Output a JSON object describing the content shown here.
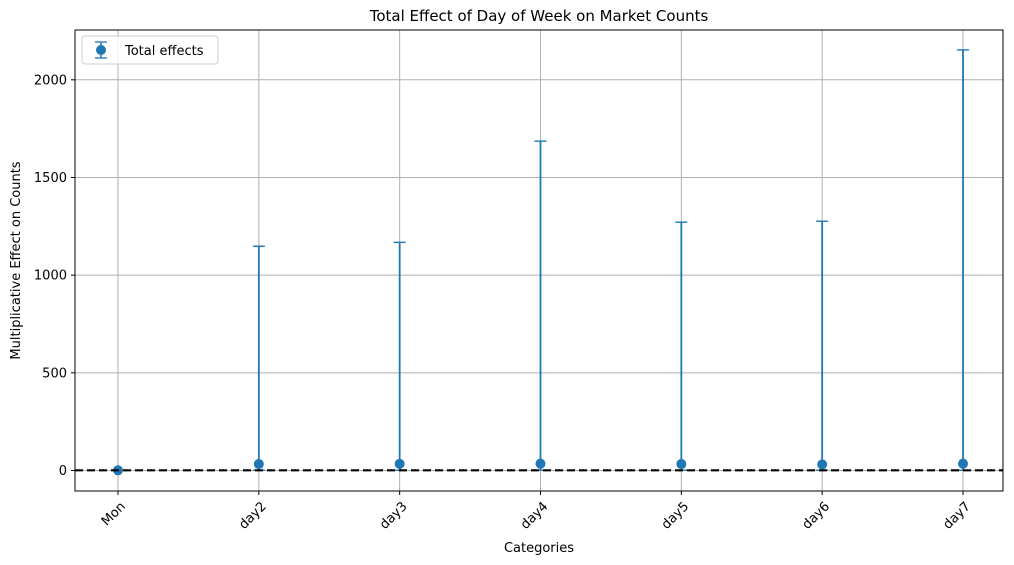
{
  "chart_data": {
    "type": "errorbar",
    "title": "Total Effect of Day of Week on Market Counts",
    "xlabel": "Categories",
    "ylabel": "Multiplicative Effect on Counts",
    "categories": [
      "Mon",
      "day2",
      "day3",
      "day4",
      "day5",
      "day6",
      "day7"
    ],
    "series": [
      {
        "name": "Total effects",
        "values": [
          1,
          33,
          34,
          35,
          33,
          31,
          35
        ],
        "lower": [
          1,
          1,
          1,
          1,
          1,
          1,
          1
        ],
        "upper": [
          1,
          1148,
          1168,
          1686,
          1271,
          1276,
          2153
        ]
      }
    ],
    "reference_line": {
      "y": 1,
      "style": "dashed",
      "color": "#000000"
    },
    "ylim": [
      -105,
      2255
    ],
    "yticks": [
      0,
      500,
      1000,
      1500,
      2000
    ],
    "grid": true,
    "legend_position": "top-left",
    "xtick_rotation": 45,
    "colors": {
      "series": "#1f77b4",
      "grid": "#b0b0b0"
    }
  }
}
